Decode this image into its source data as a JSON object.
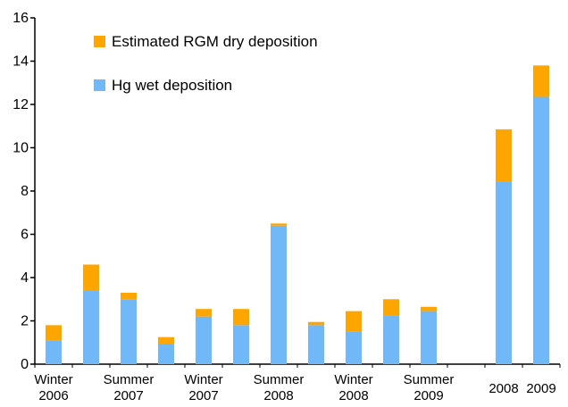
{
  "chart_data": {
    "type": "stacked-bar",
    "categories": [
      "Winter 2006",
      null,
      "Summer 2007",
      null,
      "Winter 2007",
      null,
      "Summer 2008",
      null,
      "Winter 2008",
      null,
      "Summer 2009",
      null,
      "2008",
      "2009"
    ],
    "series": [
      {
        "name": "Hg wet deposition",
        "color": "#70b8f8",
        "values": [
          1.1,
          3.4,
          3.0,
          0.95,
          2.2,
          1.8,
          6.4,
          1.8,
          1.5,
          2.25,
          2.45,
          null,
          8.45,
          12.35
        ]
      },
      {
        "name": "Estimated RGM dry deposition",
        "color": "#ffa500",
        "values": [
          0.7,
          1.2,
          0.3,
          0.3,
          0.35,
          0.75,
          0.1,
          0.15,
          0.95,
          0.75,
          0.2,
          null,
          2.4,
          1.45
        ]
      }
    ],
    "ylim": [
      0,
      16
    ],
    "yticks": [
      0,
      2,
      4,
      6,
      8,
      10,
      12,
      14,
      16
    ]
  }
}
